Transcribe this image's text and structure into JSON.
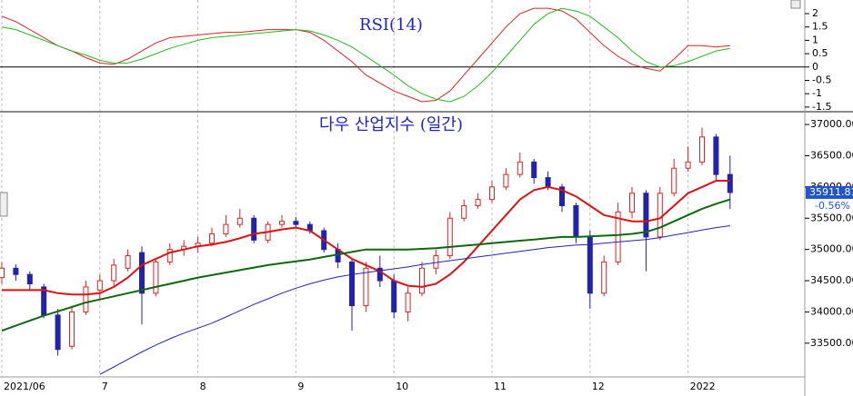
{
  "chart_data": [
    {
      "type": "line",
      "title": "RSI(14)",
      "ylim": [
        -1.64,
        2.51
      ],
      "yticks": [
        2,
        1.5,
        1,
        0.5,
        0,
        -0.5,
        -1,
        -1.5
      ],
      "zero_line": true,
      "series": [
        {
          "color": "#dd2222",
          "values": [
            1.9,
            1.7,
            1.4,
            1.1,
            0.8,
            0.6,
            0.35,
            0.15,
            0.1,
            0.3,
            0.6,
            0.9,
            1.1,
            1.15,
            1.2,
            1.25,
            1.3,
            1.3,
            1.35,
            1.4,
            1.4,
            1.4,
            1.3,
            1.0,
            0.6,
            0.2,
            -0.3,
            -0.6,
            -0.9,
            -1.1,
            -1.3,
            -1.25,
            -0.9,
            -0.3,
            0.3,
            0.9,
            1.5,
            2.0,
            2.2,
            2.2,
            2.1,
            1.8,
            1.3,
            0.8,
            0.4,
            0.1,
            -0.05,
            -0.15,
            0.3,
            0.8,
            0.8,
            0.75,
            0.8
          ]
        },
        {
          "color": "#22bb22",
          "values": [
            1.5,
            1.4,
            1.2,
            1.0,
            0.8,
            0.6,
            0.45,
            0.25,
            0.15,
            0.15,
            0.3,
            0.5,
            0.7,
            0.85,
            1.0,
            1.1,
            1.15,
            1.2,
            1.25,
            1.3,
            1.35,
            1.4,
            1.35,
            1.2,
            1.0,
            0.75,
            0.4,
            0.05,
            -0.3,
            -0.7,
            -1.0,
            -1.2,
            -1.3,
            -1.1,
            -0.7,
            -0.2,
            0.4,
            1.0,
            1.6,
            2.0,
            2.2,
            2.1,
            1.9,
            1.5,
            1.1,
            0.6,
            0.2,
            0.0,
            0.05,
            0.2,
            0.4,
            0.6,
            0.7
          ]
        }
      ]
    },
    {
      "type": "candlestick",
      "title": "다우 산업지수 (일간)",
      "categories": [
        "2021/06",
        null,
        null,
        null,
        null,
        null,
        null,
        "7",
        null,
        null,
        null,
        null,
        null,
        null,
        "8",
        null,
        null,
        null,
        null,
        null,
        null,
        "9",
        null,
        null,
        null,
        null,
        null,
        null,
        "10",
        null,
        null,
        null,
        null,
        null,
        null,
        "11",
        null,
        null,
        null,
        null,
        null,
        null,
        "12",
        null,
        null,
        null,
        null,
        null,
        null,
        "2022",
        null,
        null,
        null
      ],
      "ylim": [
        32960,
        37190
      ],
      "yticks": [
        {
          "value": 37000,
          "label": "37000.00"
        },
        {
          "value": 36500,
          "label": "36500.00"
        },
        {
          "value": 36000,
          "label": "36000.00"
        },
        {
          "value": 35500,
          "label": "35500.00"
        },
        {
          "value": 35000,
          "label": "35000.00"
        },
        {
          "value": 34500,
          "label": "34500.00"
        },
        {
          "value": 34000,
          "label": "34000.00"
        },
        {
          "value": 33500,
          "label": "33500.00"
        }
      ],
      "grid": true,
      "up_color": "#dd2222",
      "down_color": "#2222aa",
      "open": [
        34550,
        34700,
        34600,
        34400,
        33950,
        33450,
        34000,
        34350,
        34500,
        34700,
        34950,
        34300,
        34800,
        35000,
        35050,
        35100,
        35250,
        35400,
        35500,
        35150,
        35400,
        35450,
        35400,
        35300,
        35000,
        34800,
        34100,
        34700,
        34500,
        34000,
        34300,
        34700,
        34900,
        35500,
        35700,
        35800,
        36000,
        36200,
        36400,
        36150,
        36000,
        35700,
        35200,
        34300,
        34800,
        35600,
        35900,
        35200,
        35900,
        36300,
        36400,
        36800,
        36200
      ],
      "high": [
        34800,
        34760,
        34650,
        34450,
        34050,
        34100,
        34500,
        34600,
        34850,
        35000,
        35050,
        34850,
        35100,
        35150,
        35200,
        35350,
        35550,
        35650,
        35550,
        35450,
        35550,
        35520,
        35450,
        35350,
        35100,
        34850,
        34800,
        34900,
        34600,
        34400,
        34800,
        35000,
        35600,
        35800,
        35900,
        36100,
        36300,
        36550,
        36450,
        36250,
        36050,
        35750,
        35300,
        34900,
        35750,
        36000,
        35950,
        36000,
        36450,
        36650,
        36950,
        36850,
        36500
      ],
      "low": [
        34450,
        34500,
        34350,
        33900,
        33300,
        33400,
        33950,
        34200,
        34400,
        34650,
        33800,
        34250,
        34750,
        34900,
        34950,
        35050,
        35200,
        35350,
        35100,
        35100,
        35350,
        35350,
        35250,
        34950,
        34700,
        33700,
        34000,
        34400,
        33900,
        33850,
        34250,
        34600,
        34850,
        35450,
        35650,
        35750,
        35950,
        36150,
        36050,
        35950,
        35600,
        35100,
        34050,
        34250,
        34750,
        35500,
        34650,
        35150,
        35850,
        36250,
        36350,
        36100,
        35650
      ],
      "close": [
        34700,
        34600,
        34450,
        33950,
        33400,
        34000,
        34400,
        34500,
        34750,
        34900,
        34300,
        34800,
        35000,
        35050,
        35100,
        35250,
        35400,
        35500,
        35150,
        35400,
        35450,
        35400,
        35300,
        35000,
        34800,
        34100,
        34700,
        34500,
        34000,
        34300,
        34700,
        34900,
        35500,
        35700,
        35800,
        36000,
        36200,
        36400,
        36150,
        36000,
        35700,
        35200,
        34300,
        34800,
        35600,
        35900,
        35200,
        35900,
        36300,
        36400,
        36800,
        36200,
        35911.81
      ],
      "last_label": "35911.81",
      "change_label": "-0.56%",
      "series": [
        {
          "color": "#dd1111",
          "values": [
            34350,
            34350,
            34350,
            34350,
            34300,
            34280,
            34280,
            34300,
            34400,
            34550,
            34750,
            34850,
            34950,
            35000,
            35050,
            35080,
            35120,
            35180,
            35250,
            35280,
            35320,
            35350,
            35300,
            35150,
            35000,
            34850,
            34750,
            34650,
            34500,
            34420,
            34400,
            34450,
            34600,
            34800,
            35050,
            35300,
            35550,
            35800,
            35950,
            36000,
            35950,
            35850,
            35700,
            35550,
            35500,
            35450,
            35450,
            35500,
            35700,
            35900,
            36000,
            36100,
            36100
          ]
        },
        {
          "color": "#116611",
          "values": [
            33700,
            33780,
            33860,
            33940,
            34010,
            34080,
            34150,
            34200,
            34250,
            34300,
            34350,
            34400,
            34450,
            34500,
            34550,
            34590,
            34630,
            34670,
            34710,
            34750,
            34780,
            34810,
            34840,
            34880,
            34920,
            34960,
            35000,
            35000,
            35000,
            35000,
            35010,
            35020,
            35040,
            35060,
            35080,
            35100,
            35120,
            35140,
            35160,
            35180,
            35200,
            35200,
            35210,
            35220,
            35230,
            35250,
            35280,
            35350,
            35450,
            35550,
            35650,
            35730,
            35800
          ]
        },
        {
          "color": "#2222bb",
          "values": [
            null,
            null,
            null,
            null,
            null,
            null,
            null,
            33000,
            33120,
            33240,
            33360,
            33470,
            33570,
            33660,
            33740,
            33820,
            33920,
            34020,
            34120,
            34210,
            34300,
            34380,
            34450,
            34510,
            34560,
            34600,
            34630,
            34660,
            34690,
            34720,
            34760,
            34790,
            34820,
            34850,
            34880,
            34910,
            34940,
            34970,
            35000,
            35030,
            35050,
            35070,
            35080,
            35100,
            35120,
            35140,
            35160,
            35190,
            35230,
            35270,
            35310,
            35350,
            35380
          ]
        }
      ]
    }
  ]
}
